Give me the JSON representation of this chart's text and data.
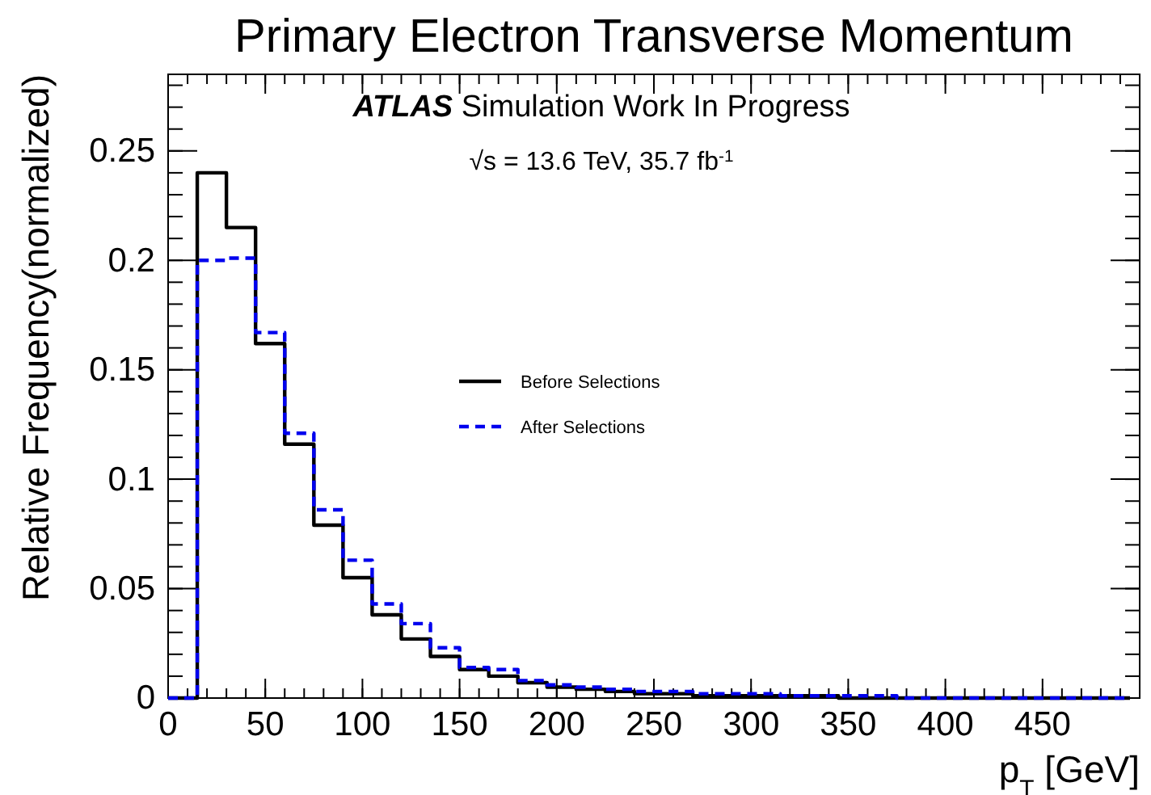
{
  "chart_data": {
    "type": "histogram",
    "title": "Primary Electron Transverse Momentum",
    "xlabel": "p$_{T}$ [GeV]",
    "ylabel": "Relative Frequency(normalized)",
    "annotations": [
      "ATLAS Simulation Work In Progress",
      "√s = 13.6 TeV, 35.7 fb$^{-1}$"
    ],
    "bins": [
      0,
      15,
      30,
      45,
      60,
      75,
      90,
      105,
      120,
      135,
      150,
      165,
      180,
      195,
      210,
      225,
      240,
      255,
      270,
      285,
      300,
      315,
      330,
      345,
      360,
      375,
      390,
      405,
      420,
      435,
      450,
      465,
      480,
      495
    ],
    "series": [
      {
        "name": "Before Selections",
        "color": "#000000",
        "line_style": "solid",
        "values": [
          0,
          0.24,
          0.215,
          0.162,
          0.116,
          0.079,
          0.055,
          0.038,
          0.027,
          0.019,
          0.013,
          0.01,
          0.007,
          0.005,
          0.004,
          0.003,
          0.002,
          0.002,
          0.001,
          0.001,
          0.001,
          0.001,
          0.001,
          0,
          0,
          0,
          0,
          0,
          0,
          0,
          0,
          0,
          0
        ]
      },
      {
        "name": "After Selections",
        "color": "#0000ee",
        "line_style": "dashed",
        "values": [
          0,
          0.2,
          0.201,
          0.167,
          0.121,
          0.086,
          0.063,
          0.043,
          0.034,
          0.023,
          0.014,
          0.013,
          0.008,
          0.006,
          0.005,
          0.004,
          0.003,
          0.003,
          0.002,
          0.002,
          0.002,
          0.001,
          0.001,
          0.001,
          0.001,
          0,
          0,
          0,
          0,
          0,
          0,
          0,
          0
        ]
      }
    ],
    "xlim": [
      0,
      500
    ],
    "ylim": [
      0,
      0.285
    ],
    "xticks": [
      0,
      50,
      100,
      150,
      200,
      250,
      300,
      350,
      400,
      450
    ],
    "yticks": [
      0,
      0.05,
      {
        "value": 0.1,
        "label": "0.1"
      },
      0.15,
      {
        "value": 0.2,
        "label": "0.2"
      },
      0.25
    ],
    "legend": "center",
    "grid": false
  }
}
